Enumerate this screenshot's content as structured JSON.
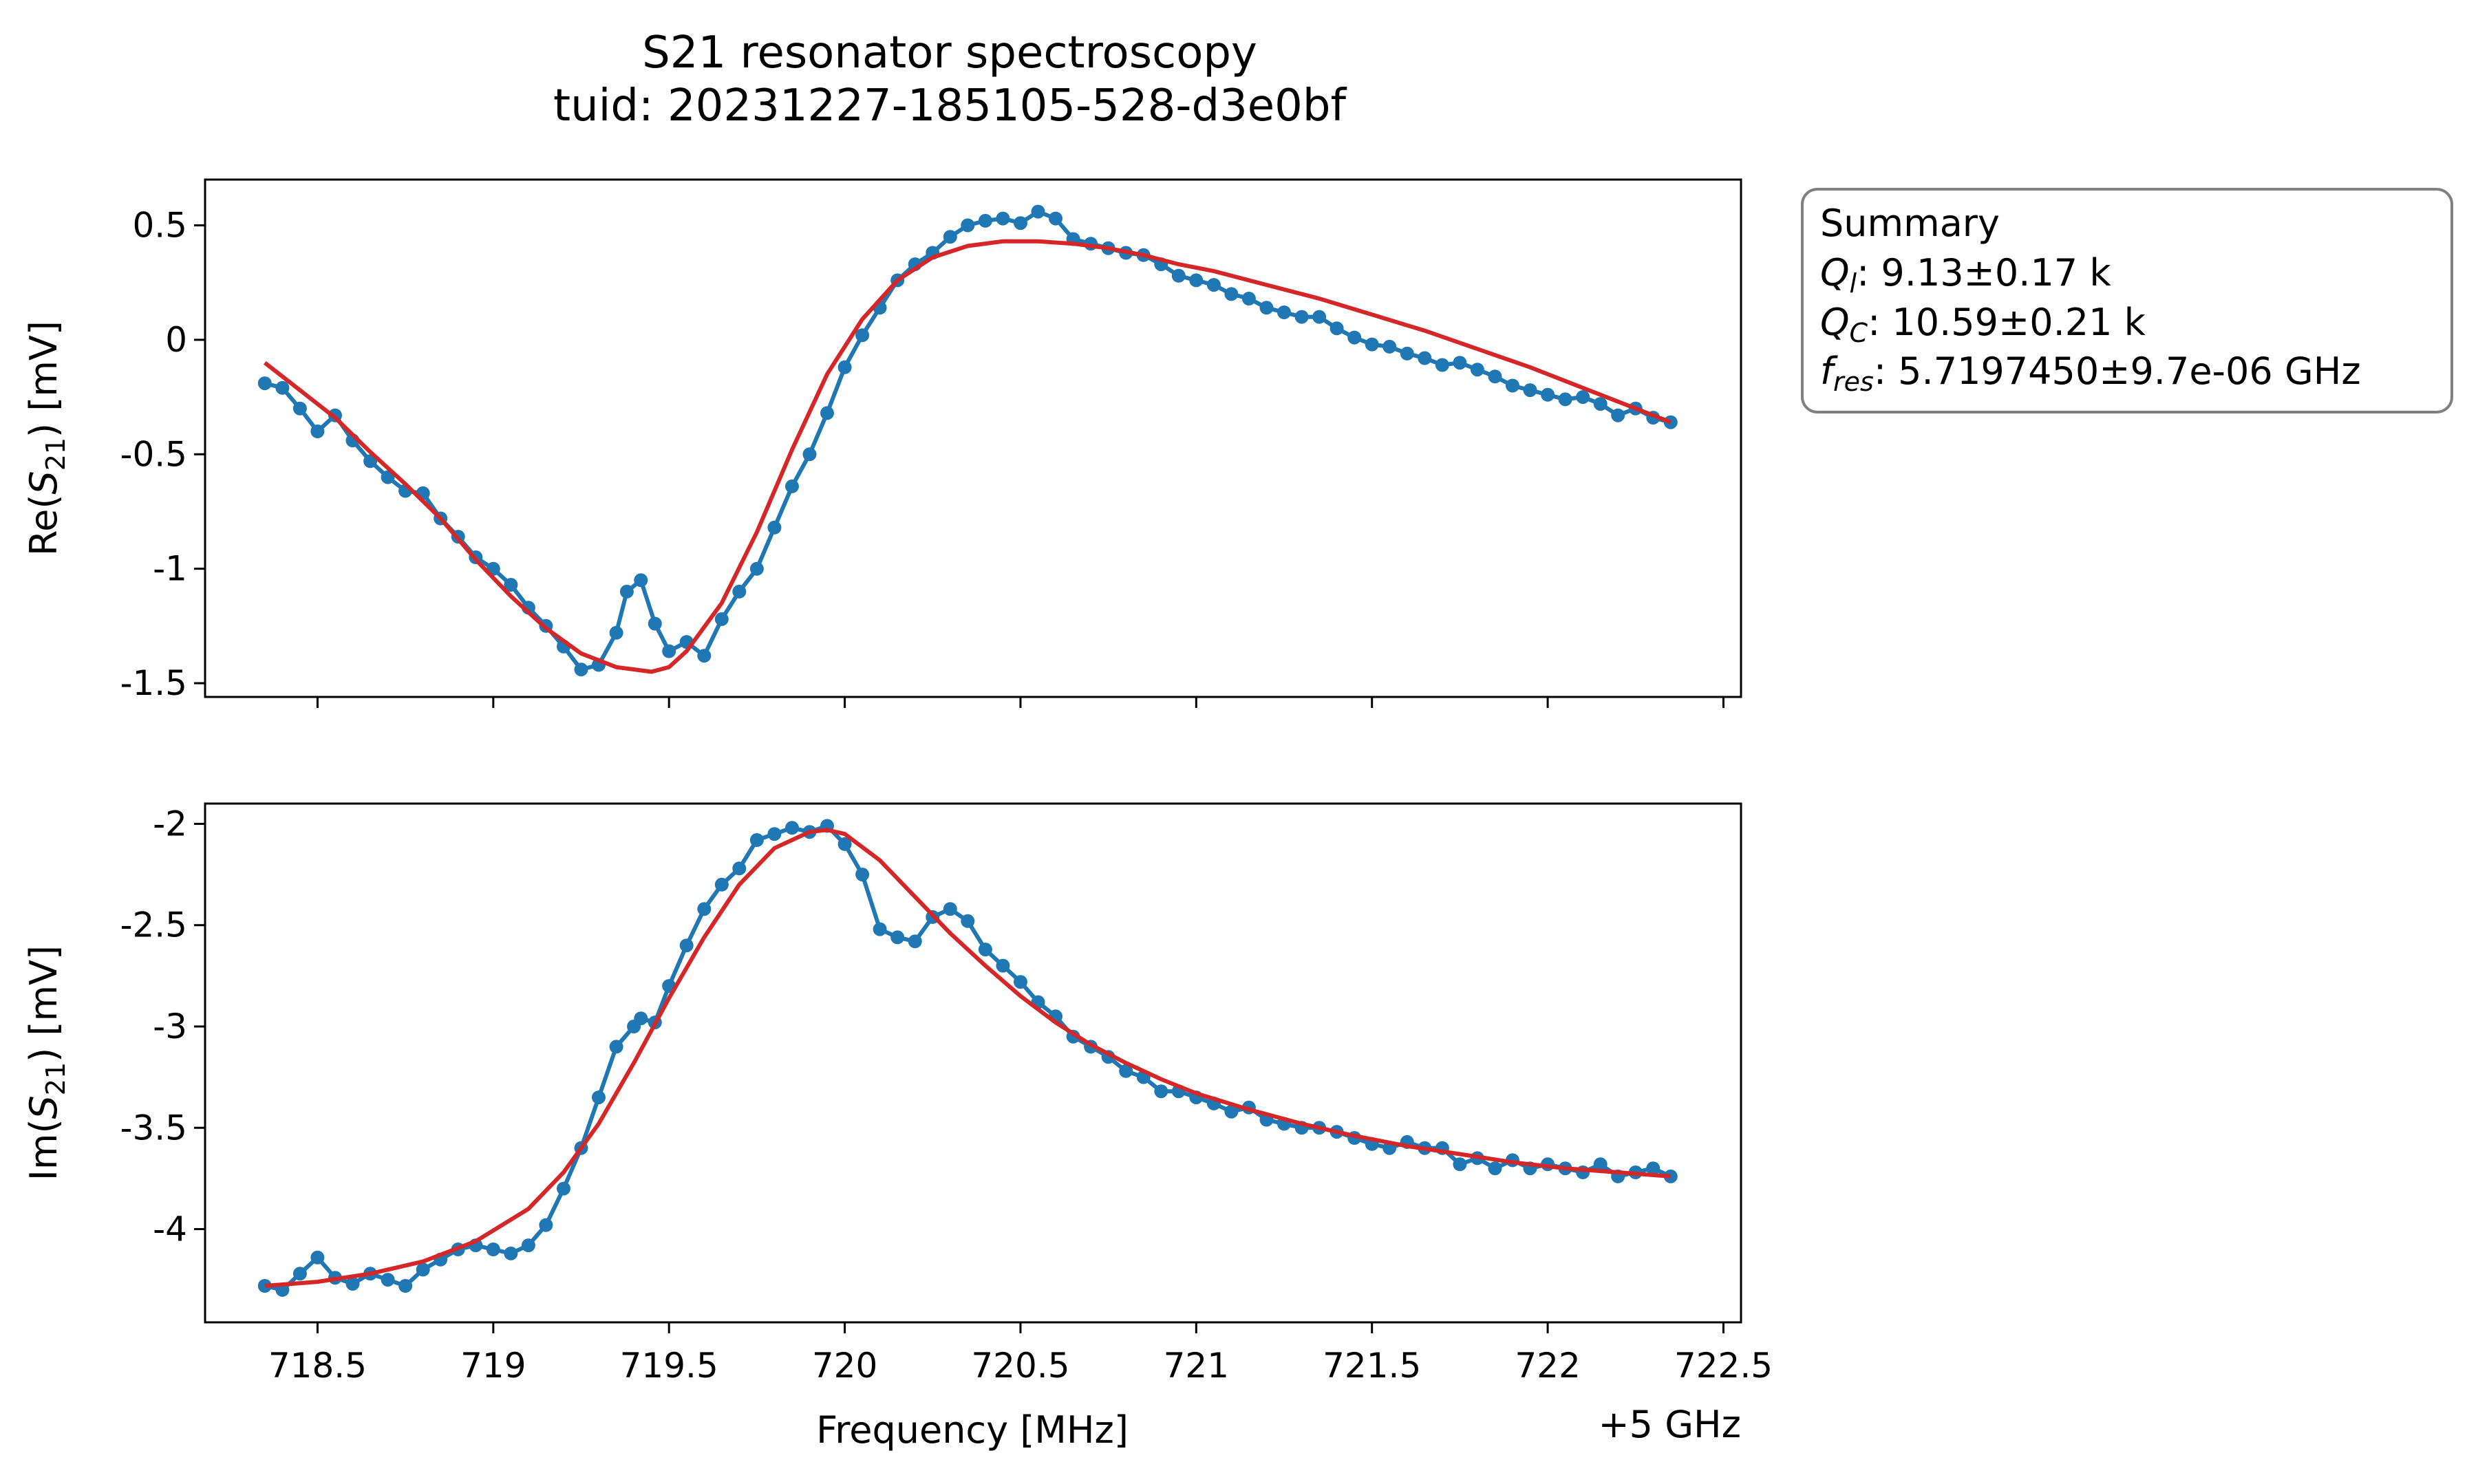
{
  "figure": {
    "title_line1": "S21 resonator spectroscopy",
    "title_line2": "tuid: 20231227-185105-528-d3e0bf"
  },
  "summary": {
    "heading": "Summary",
    "ql_sym": "Q",
    "ql_sub": "l",
    "ql_value": ": 9.13±0.17 k",
    "qc_sym": "Q",
    "qc_sub": "C",
    "qc_value": ": 10.59±0.21 k",
    "fres_sym": "f",
    "fres_sub": "res",
    "fres_value": ": 5.7197450±9.7e-06 GHz"
  },
  "chart_data": [
    {
      "type": "line",
      "id": "re",
      "ylabel_prefix": "Re(",
      "ylabel_sym": "S",
      "ylabel_sub": "21",
      "ylabel_suffix": ") [mV]",
      "xlim": [
        718.18,
        722.55
      ],
      "ylim": [
        -1.56,
        0.7
      ],
      "yticks": [
        0.5,
        0,
        -0.5,
        -1,
        -1.5
      ],
      "ytick_labels": [
        "0.5",
        "0",
        "-0.5",
        "-1",
        "-1.5"
      ],
      "xticks": [
        718.5,
        719,
        719.5,
        720,
        720.5,
        721,
        721.5,
        722,
        722.5
      ],
      "show_xtick_labels": false,
      "data_color": "#1f77b4",
      "fit_color": "#d62728",
      "data_x": [
        718.35,
        718.4,
        718.45,
        718.5,
        718.55,
        718.6,
        718.65,
        718.7,
        718.75,
        718.8,
        718.85,
        718.9,
        718.95,
        719.0,
        719.05,
        719.1,
        719.15,
        719.2,
        719.25,
        719.3,
        719.35,
        719.38,
        719.42,
        719.46,
        719.5,
        719.55,
        719.6,
        719.65,
        719.7,
        719.75,
        719.8,
        719.85,
        719.9,
        719.95,
        720.0,
        720.05,
        720.1,
        720.15,
        720.2,
        720.25,
        720.3,
        720.35,
        720.4,
        720.45,
        720.5,
        720.55,
        720.6,
        720.65,
        720.7,
        720.75,
        720.8,
        720.85,
        720.9,
        720.95,
        721.0,
        721.05,
        721.1,
        721.15,
        721.2,
        721.25,
        721.3,
        721.35,
        721.4,
        721.45,
        721.5,
        721.55,
        721.6,
        721.65,
        721.7,
        721.75,
        721.8,
        721.85,
        721.9,
        721.95,
        722.0,
        722.05,
        722.1,
        722.15,
        722.2,
        722.25,
        722.3,
        722.35
      ],
      "data_y": [
        -0.19,
        -0.21,
        -0.3,
        -0.4,
        -0.33,
        -0.44,
        -0.53,
        -0.6,
        -0.66,
        -0.67,
        -0.78,
        -0.86,
        -0.95,
        -1.0,
        -1.07,
        -1.17,
        -1.25,
        -1.34,
        -1.44,
        -1.42,
        -1.28,
        -1.1,
        -1.05,
        -1.24,
        -1.36,
        -1.32,
        -1.38,
        -1.22,
        -1.1,
        -1.0,
        -0.82,
        -0.64,
        -0.5,
        -0.32,
        -0.12,
        0.02,
        0.14,
        0.26,
        0.33,
        0.38,
        0.45,
        0.5,
        0.52,
        0.53,
        0.51,
        0.56,
        0.53,
        0.44,
        0.42,
        0.4,
        0.38,
        0.37,
        0.33,
        0.28,
        0.26,
        0.24,
        0.2,
        0.18,
        0.14,
        0.12,
        0.1,
        0.1,
        0.05,
        0.01,
        -0.02,
        -0.03,
        -0.06,
        -0.08,
        -0.11,
        -0.1,
        -0.13,
        -0.16,
        -0.2,
        -0.22,
        -0.24,
        -0.26,
        -0.25,
        -0.28,
        -0.33,
        -0.3,
        -0.34,
        -0.36
      ],
      "fit_x": [
        718.35,
        718.45,
        718.55,
        718.65,
        718.75,
        718.85,
        718.95,
        719.05,
        719.15,
        719.25,
        719.35,
        719.45,
        719.5,
        719.55,
        719.65,
        719.75,
        719.85,
        719.95,
        720.05,
        720.15,
        720.25,
        720.35,
        720.45,
        720.55,
        720.65,
        720.75,
        720.85,
        720.95,
        721.05,
        721.2,
        721.35,
        721.5,
        721.65,
        721.8,
        721.95,
        722.1,
        722.25,
        722.35
      ],
      "fit_y": [
        -0.1,
        -0.22,
        -0.34,
        -0.49,
        -0.63,
        -0.78,
        -0.96,
        -1.12,
        -1.26,
        -1.37,
        -1.43,
        -1.45,
        -1.43,
        -1.36,
        -1.15,
        -0.84,
        -0.48,
        -0.15,
        0.09,
        0.26,
        0.36,
        0.41,
        0.43,
        0.43,
        0.42,
        0.4,
        0.37,
        0.33,
        0.3,
        0.24,
        0.18,
        0.11,
        0.04,
        -0.04,
        -0.12,
        -0.21,
        -0.3,
        -0.36
      ]
    },
    {
      "type": "line",
      "id": "im",
      "ylabel_prefix": "Im(",
      "ylabel_sym": "S",
      "ylabel_sub": "21",
      "ylabel_suffix": ") [mV]",
      "xlabel": "Frequency [MHz]",
      "x_offset_label": "+5 GHz",
      "xlim": [
        718.18,
        722.55
      ],
      "ylim": [
        -4.46,
        -1.9
      ],
      "yticks": [
        -2,
        -2.5,
        -3,
        -3.5,
        -4
      ],
      "ytick_labels": [
        "-2",
        "-2.5",
        "-3",
        "-3.5",
        "-4"
      ],
      "xticks": [
        718.5,
        719,
        719.5,
        720,
        720.5,
        721,
        721.5,
        722,
        722.5
      ],
      "xtick_labels": [
        "718.5",
        "719",
        "719.5",
        "720",
        "720.5",
        "721",
        "721.5",
        "722",
        "722.5"
      ],
      "show_xtick_labels": true,
      "data_color": "#1f77b4",
      "fit_color": "#d62728",
      "data_x": [
        718.35,
        718.4,
        718.45,
        718.5,
        718.55,
        718.6,
        718.65,
        718.7,
        718.75,
        718.8,
        718.85,
        718.9,
        718.95,
        719.0,
        719.05,
        719.1,
        719.15,
        719.2,
        719.25,
        719.3,
        719.35,
        719.4,
        719.42,
        719.46,
        719.5,
        719.55,
        719.6,
        719.65,
        719.7,
        719.75,
        719.8,
        719.85,
        719.9,
        719.95,
        720.0,
        720.05,
        720.1,
        720.15,
        720.2,
        720.25,
        720.3,
        720.35,
        720.4,
        720.45,
        720.5,
        720.55,
        720.6,
        720.65,
        720.7,
        720.75,
        720.8,
        720.85,
        720.9,
        720.95,
        721.0,
        721.05,
        721.1,
        721.15,
        721.2,
        721.25,
        721.3,
        721.35,
        721.4,
        721.45,
        721.5,
        721.55,
        721.6,
        721.65,
        721.7,
        721.75,
        721.8,
        721.85,
        721.9,
        721.95,
        722.0,
        722.05,
        722.1,
        722.15,
        722.2,
        722.25,
        722.3,
        722.35
      ],
      "data_y": [
        -4.28,
        -4.3,
        -4.22,
        -4.14,
        -4.24,
        -4.27,
        -4.22,
        -4.25,
        -4.28,
        -4.2,
        -4.15,
        -4.1,
        -4.08,
        -4.1,
        -4.12,
        -4.08,
        -3.98,
        -3.8,
        -3.6,
        -3.35,
        -3.1,
        -3.0,
        -2.96,
        -2.98,
        -2.8,
        -2.6,
        -2.42,
        -2.3,
        -2.22,
        -2.08,
        -2.05,
        -2.02,
        -2.04,
        -2.01,
        -2.1,
        -2.25,
        -2.52,
        -2.56,
        -2.58,
        -2.46,
        -2.42,
        -2.48,
        -2.62,
        -2.7,
        -2.78,
        -2.88,
        -2.95,
        -3.05,
        -3.1,
        -3.15,
        -3.22,
        -3.25,
        -3.32,
        -3.32,
        -3.35,
        -3.38,
        -3.42,
        -3.4,
        -3.46,
        -3.48,
        -3.5,
        -3.5,
        -3.52,
        -3.55,
        -3.58,
        -3.6,
        -3.57,
        -3.6,
        -3.6,
        -3.68,
        -3.65,
        -3.7,
        -3.66,
        -3.7,
        -3.68,
        -3.7,
        -3.72,
        -3.68,
        -3.74,
        -3.72,
        -3.7,
        -3.74
      ],
      "fit_x": [
        718.35,
        718.5,
        718.65,
        718.8,
        718.95,
        719.1,
        719.2,
        719.3,
        719.4,
        719.5,
        719.6,
        719.7,
        719.8,
        719.9,
        719.95,
        720.0,
        720.1,
        720.2,
        720.3,
        720.4,
        720.5,
        720.6,
        720.7,
        720.8,
        720.9,
        721.0,
        721.15,
        721.3,
        721.45,
        721.6,
        721.75,
        721.9,
        722.05,
        722.2,
        722.35
      ],
      "fit_y": [
        -4.28,
        -4.26,
        -4.22,
        -4.16,
        -4.06,
        -3.9,
        -3.72,
        -3.48,
        -3.18,
        -2.86,
        -2.56,
        -2.3,
        -2.12,
        -2.04,
        -2.03,
        -2.05,
        -2.18,
        -2.36,
        -2.54,
        -2.7,
        -2.85,
        -2.98,
        -3.09,
        -3.18,
        -3.26,
        -3.33,
        -3.41,
        -3.48,
        -3.54,
        -3.59,
        -3.63,
        -3.67,
        -3.7,
        -3.72,
        -3.74
      ]
    }
  ]
}
